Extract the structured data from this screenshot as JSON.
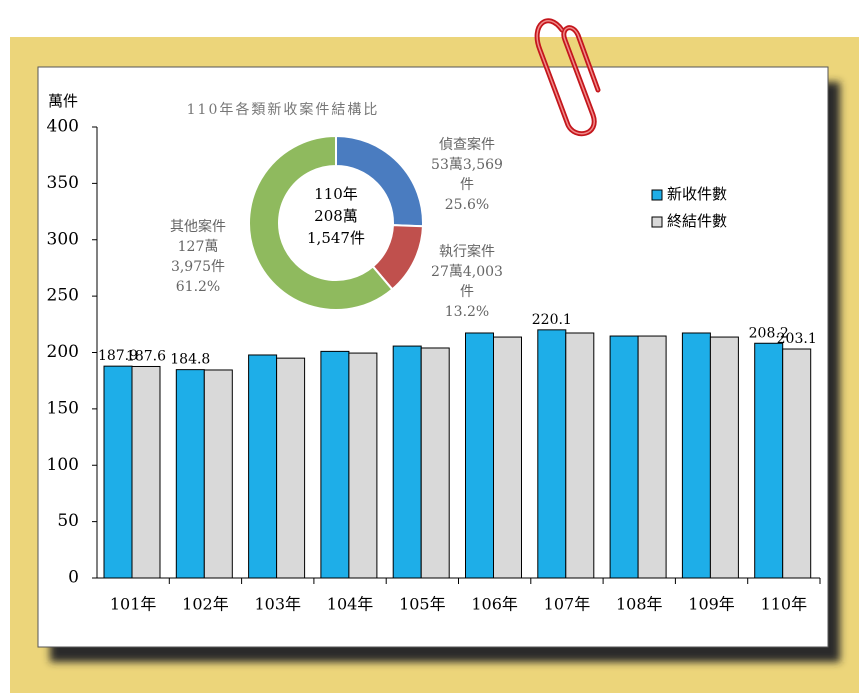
{
  "chart_data": [
    {
      "type": "bar",
      "y_label": "萬件",
      "categories": [
        "101年",
        "102年",
        "103年",
        "104年",
        "105年",
        "106年",
        "107年",
        "108年",
        "109年",
        "110年"
      ],
      "series": [
        {
          "name": "新收件數",
          "color": "#1eaee8",
          "values": [
            187.9,
            184.8,
            197.8,
            201.0,
            205.7,
            217.3,
            220.1,
            214.6,
            217.3,
            208.2
          ],
          "value_labels": [
            "187.9",
            "184.8",
            null,
            null,
            null,
            null,
            "220.1",
            null,
            null,
            "208.2"
          ]
        },
        {
          "name": "終結件數",
          "color": "#d9d9d9",
          "values": [
            187.6,
            184.5,
            195.0,
            199.5,
            204.0,
            213.7,
            217.3,
            214.6,
            213.7,
            203.1
          ],
          "value_labels": [
            "187.6",
            null,
            null,
            null,
            null,
            null,
            null,
            null,
            null,
            "203.1"
          ]
        }
      ],
      "ylim": [
        0,
        400
      ],
      "yticks": [
        0,
        50,
        100,
        150,
        200,
        250,
        300,
        350,
        400
      ],
      "legend": "right"
    },
    {
      "type": "donut",
      "title": "110年各類新收案件結構比",
      "center_label": [
        "110年",
        "208萬",
        "1,547件"
      ],
      "categories": [
        "偵查案件",
        "執行案件",
        "其他案件"
      ],
      "values": [
        25.6,
        13.2,
        61.2
      ],
      "value_labels": [
        "25.6%",
        "13.2%",
        "61.2%"
      ],
      "count_labels": [
        [
          "53萬3,569",
          "件"
        ],
        [
          "27萬4,003",
          "件"
        ],
        [
          "127萬",
          "3,975件"
        ]
      ],
      "colors": [
        "#4a7cc0",
        "#c0504d",
        "#8fba5e"
      ]
    }
  ]
}
